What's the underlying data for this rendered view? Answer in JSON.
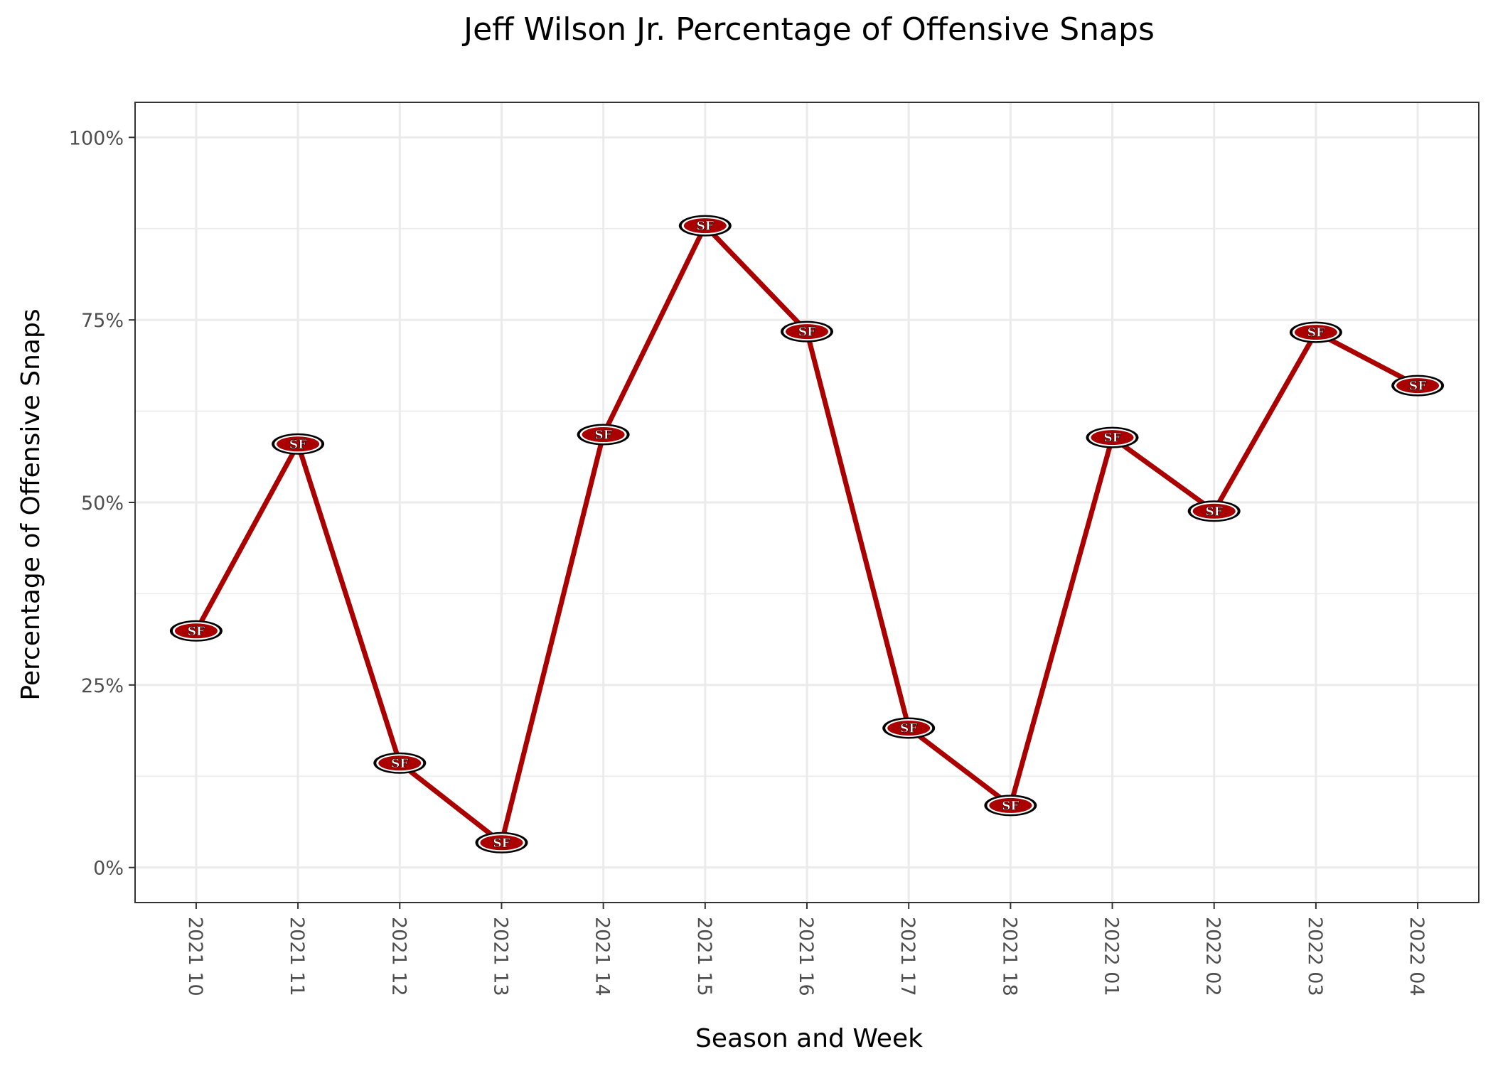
{
  "chart_data": {
    "type": "line",
    "title": "Jeff Wilson Jr. Percentage of Offensive Snaps",
    "xlabel": "Season and Week",
    "ylabel": "Percentage of Offensive Snaps",
    "categories": [
      "2021 10",
      "2021 11",
      "2021 12",
      "2021 13",
      "2021 14",
      "2021 15",
      "2021 16",
      "2021 17",
      "2021 18",
      "2022 01",
      "2022 02",
      "2022 03",
      "2022 04"
    ],
    "series": [
      {
        "values": [
          32.4,
          58.0,
          14.3,
          3.4,
          59.3,
          87.9,
          73.4,
          19.1,
          8.5,
          58.9,
          48.8,
          73.3,
          66.0
        ],
        "color": "#aa0000",
        "marker": "49ers-logo"
      }
    ],
    "ylim": [
      -4.8,
      104.8
    ],
    "yticks": [
      0,
      25,
      50,
      75,
      100
    ],
    "ytick_labels": [
      "0%",
      "25%",
      "50%",
      "75%",
      "100%"
    ],
    "grid": true,
    "legend": "none",
    "colors": {
      "line": "#aa0000",
      "marker_fill": "#aa0000",
      "marker_ring": "#000000",
      "marker_text": "#ffffff",
      "grid": "#ebebeb",
      "panel_border": "#333333"
    },
    "marker_text": "SF"
  }
}
